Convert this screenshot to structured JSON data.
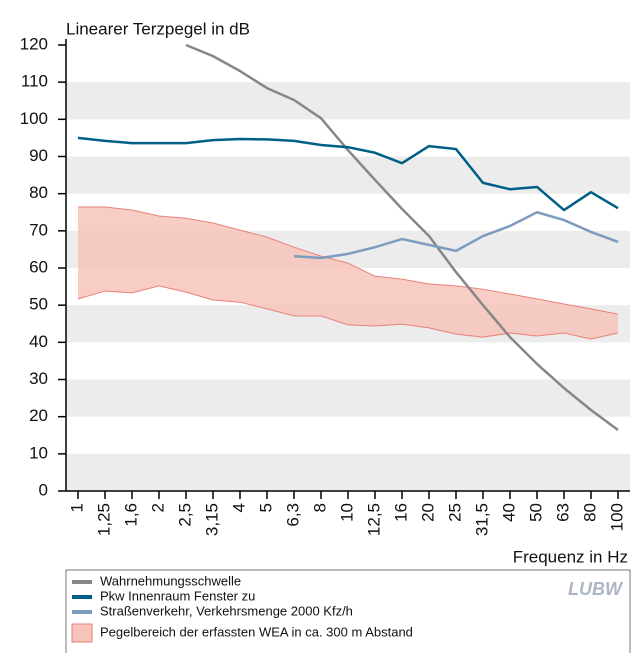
{
  "chart_data": {
    "type": "line",
    "y_label": "Linearer Terzpegel in dB",
    "x_label": "Frequenz in Hz",
    "logo": "LUBW",
    "categories": [
      "1",
      "1,25",
      "1,6",
      "2",
      "2,5",
      "3,15",
      "4",
      "5",
      "6,3",
      "8",
      "10",
      "12,5",
      "16",
      "20",
      "25",
      "31,5",
      "40",
      "50",
      "63",
      "80",
      "100"
    ],
    "series": [
      {
        "name": "Wahrnehmungsschwelle",
        "color": "#878787",
        "values": [
          null,
          null,
          null,
          null,
          120,
          117,
          113,
          108.4,
          105.2,
          100.3,
          91.7,
          83.7,
          75.9,
          68.6,
          58.9,
          50,
          41.4,
          34.2,
          27.7,
          21.8,
          16.4
        ]
      },
      {
        "name": "Pkw Innenraum Fenster zu",
        "color": "#005f87",
        "values": [
          95,
          94.2,
          93.6,
          93.6,
          93.6,
          94.4,
          94.7,
          94.6,
          94.2,
          93.1,
          92.5,
          91,
          88.2,
          92.8,
          92,
          82.9,
          81.2,
          81.8,
          75.6,
          80.4,
          76.1
        ]
      },
      {
        "name": "Straßenverkehr, Verkehrsmenge 2000 Kfz/h",
        "color": "#7d9cbf",
        "values": [
          null,
          null,
          null,
          null,
          null,
          null,
          null,
          null,
          63.2,
          62.7,
          63.8,
          65.6,
          67.8,
          66.2,
          64.6,
          68.6,
          71.3,
          75,
          72.9,
          69.7,
          67
        ]
      },
      {
        "name": "Pegelbereich der erfassten WEA in ca. 300 m Abstand",
        "color": "#f7c4bc",
        "edge_color": "#e8827a",
        "band": true,
        "values": [
          76.4,
          76.4,
          75.6,
          74,
          73.4,
          72.1,
          70.2,
          68.3,
          65.6,
          63.2,
          61.3,
          57.8,
          57,
          55.7,
          55.2,
          54.3,
          53,
          51.7,
          50.3,
          49,
          47.6
        ],
        "lower": [
          51.7,
          53.8,
          53.3,
          55.2,
          53.5,
          51.4,
          50.8,
          49,
          47.1,
          47.1,
          44.7,
          44.4,
          44.9,
          43.9,
          42.2,
          41.4,
          42.5,
          41.7,
          42.5,
          40.9,
          42.5
        ]
      }
    ],
    "ylim": [
      0,
      120
    ],
    "yticks": [
      0,
      10,
      20,
      30,
      40,
      50,
      60,
      70,
      80,
      90,
      100,
      110,
      120
    ],
    "grid_bands": true
  }
}
